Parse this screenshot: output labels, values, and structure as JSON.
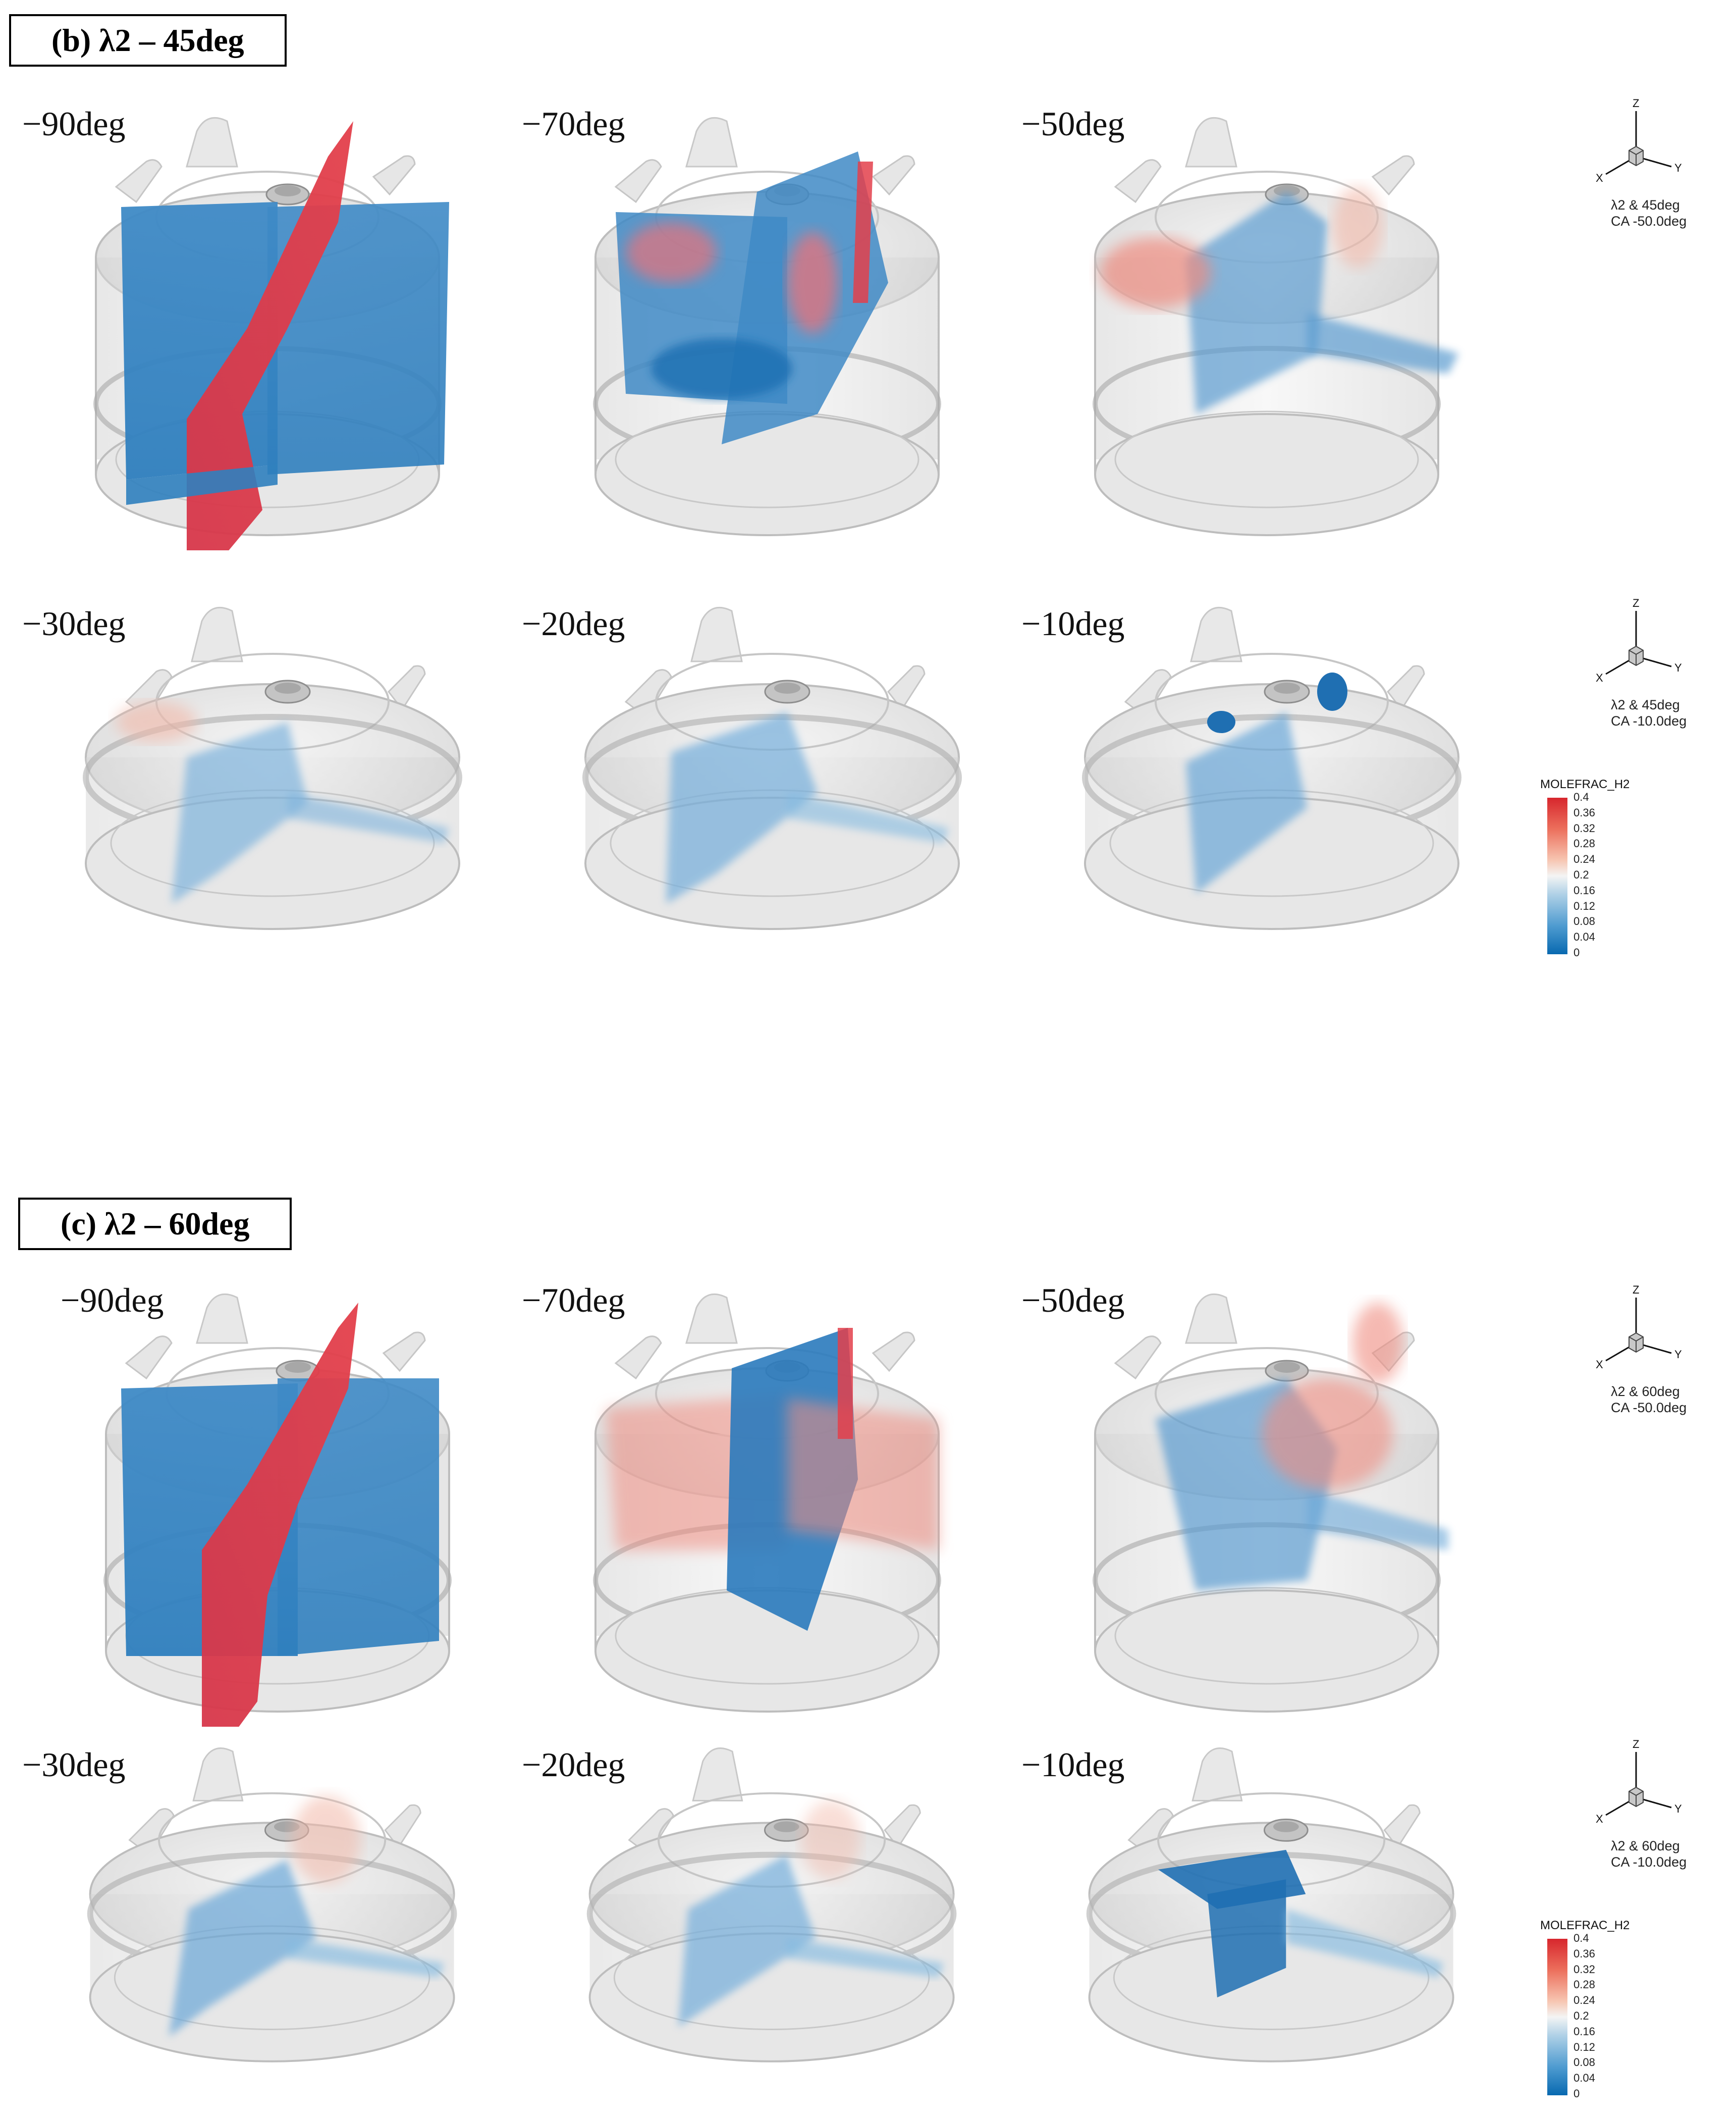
{
  "figure": {
    "sections": [
      {
        "title": "(b) λ2 – 45deg",
        "rows": [
          {
            "panels": [
              "−90deg",
              "−70deg",
              "−50deg"
            ],
            "case_line1": "λ2 & 45deg",
            "case_line2": "CA -50.0deg"
          },
          {
            "panels": [
              "−30deg",
              "−20deg",
              "−10deg"
            ],
            "case_line1": "λ2 & 45deg",
            "case_line2": "CA -10.0deg"
          }
        ]
      },
      {
        "title": "(c) λ2 – 60deg",
        "rows": [
          {
            "panels": [
              "−90deg",
              "−70deg",
              "−50deg"
            ],
            "case_line1": "λ2 & 60deg",
            "case_line2": "CA -50.0deg"
          },
          {
            "panels": [
              "−30deg",
              "−20deg",
              "−10deg"
            ],
            "case_line1": "λ2 & 60deg",
            "case_line2": "CA -10.0deg"
          }
        ]
      }
    ],
    "axis_labels": {
      "z": "Z",
      "x": "X",
      "y": "Y"
    },
    "legend": {
      "title": "MOLEFRAC_H2",
      "ticks": [
        "0.4",
        "0.36",
        "0.32",
        "0.28",
        "0.24",
        "0.2",
        "0.16",
        "0.12",
        "0.08",
        "0.04",
        "0"
      ],
      "colors": {
        "high": "#d7262d",
        "mid": "#f4f4f4",
        "low": "#0869b0"
      }
    }
  }
}
